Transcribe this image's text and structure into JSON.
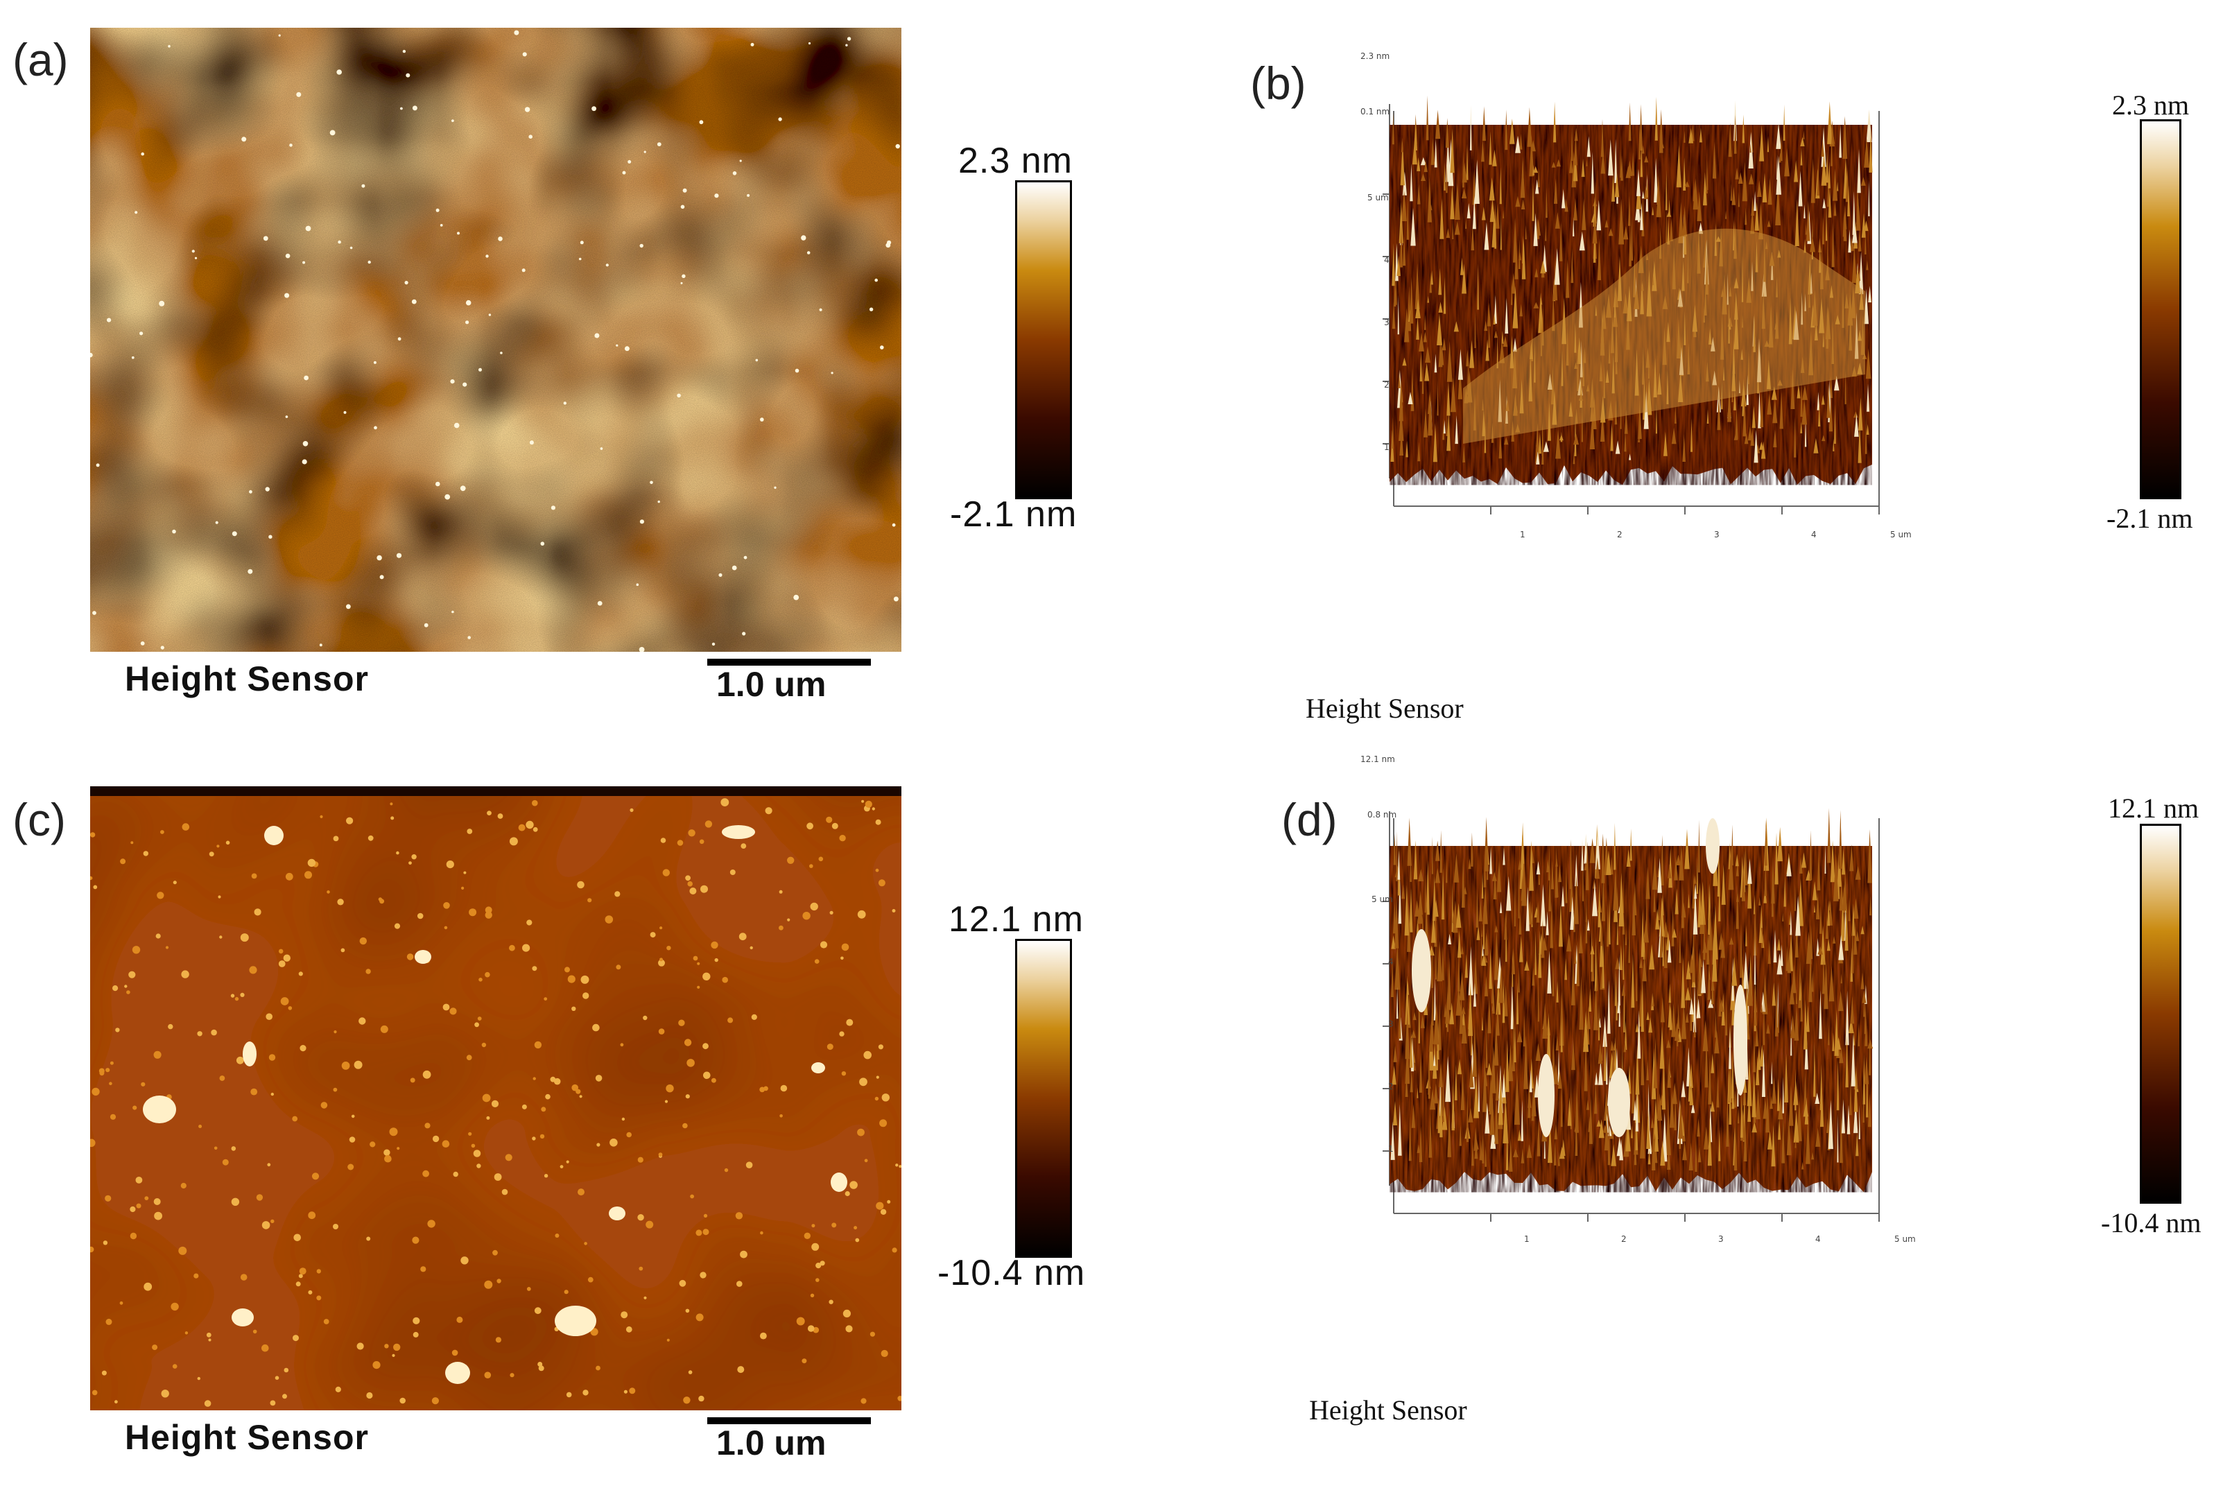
{
  "panels": {
    "a": {
      "label": "(a)",
      "caption": "Height Sensor",
      "scale_bar": "1.0 um",
      "colorbar_max": "2.3 nm",
      "colorbar_min": "-2.1 nm"
    },
    "b": {
      "label": "(b)",
      "caption": "Height Sensor",
      "colorbar_max": "2.3 nm",
      "colorbar_min": "-2.1 nm",
      "z_top": "2.3 nm",
      "z_mid": "0.1 nm",
      "y_ticks": [
        "5 um",
        "4",
        "3",
        "2",
        "1"
      ],
      "x_ticks": [
        "1",
        "2",
        "3",
        "4",
        "5 um"
      ]
    },
    "c": {
      "label": "(c)",
      "caption": "Height Sensor",
      "scale_bar": "1.0 um",
      "colorbar_max": "12.1 nm",
      "colorbar_min": "-10.4 nm"
    },
    "d": {
      "label": "(d)",
      "caption": "Height Sensor",
      "colorbar_max": "12.1 nm",
      "colorbar_min": "-10.4 nm",
      "z_top": "12.1 nm",
      "z_mid": "0.8 nm",
      "y_ticks": [
        "5 um",
        "4",
        "3",
        "2",
        "1"
      ],
      "x_ticks": [
        "1",
        "2",
        "3",
        "4",
        "5 um"
      ]
    }
  },
  "colors": {
    "afm_dark": "#1a0500",
    "afm_mid": "#8a3a00",
    "afm_light": "#f2d28a",
    "afm_white": "#ffffff"
  }
}
